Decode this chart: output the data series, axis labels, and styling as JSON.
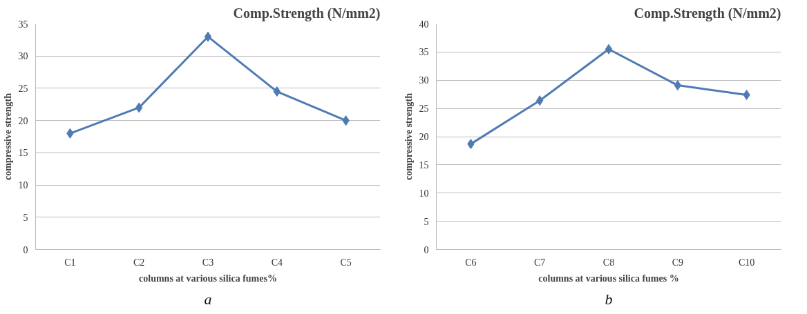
{
  "chart_data": [
    {
      "type": "line",
      "title": "Comp.Strength (N/mm2)",
      "xlabel": "columns at various silica fumes%",
      "ylabel": "compressive strength",
      "annotations": [
        "a"
      ],
      "categories": [
        "C1",
        "C2",
        "C3",
        "C4",
        "C5"
      ],
      "series": [
        {
          "color": "#4f7bb5",
          "values": [
            18,
            22,
            33,
            24.5,
            20
          ]
        }
      ],
      "ylim": [
        0,
        35
      ],
      "yticks": [
        0,
        5,
        10,
        15,
        20,
        25,
        30,
        35
      ],
      "grid": "y",
      "marker": "diamond",
      "line_style": "solid"
    },
    {
      "type": "line",
      "title": "Comp.Strength (N/mm2)",
      "xlabel": "columns at various silica fumes %",
      "ylabel": "compressive strength",
      "annotations": [
        "b"
      ],
      "categories": [
        "C6",
        "C7",
        "C8",
        "C9",
        "C10"
      ],
      "series": [
        {
          "color": "#4f7bb5",
          "values": [
            18.7,
            26.4,
            35.5,
            29.1,
            27.4
          ]
        }
      ],
      "ylim": [
        0,
        40
      ],
      "yticks": [
        0,
        5,
        10,
        15,
        20,
        25,
        30,
        35,
        40
      ],
      "grid": "y",
      "marker": "diamond",
      "line_style": "solid"
    }
  ]
}
